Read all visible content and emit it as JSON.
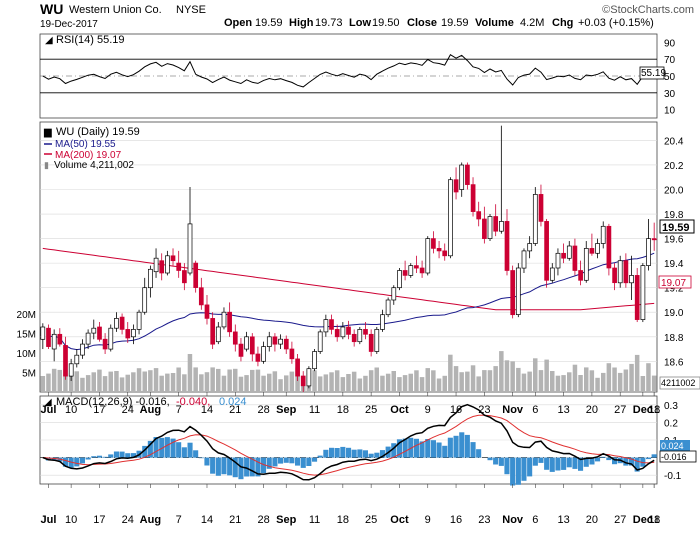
{
  "header": {
    "symbol": "WU",
    "company": "Western Union Co.",
    "exchange": "NYSE",
    "date": "19-Dec-2017",
    "open_label": "Open",
    "open": "19.59",
    "high_label": "High",
    "high": "19.73",
    "low_label": "Low",
    "low": "19.50",
    "close_label": "Close",
    "close": "19.59",
    "volume_label": "Volume",
    "volume": "4.2M",
    "chg_label": "Chg",
    "chg": "+0.03 (+0.15%)",
    "brand": "©StockCharts.com"
  },
  "colors": {
    "up": "#000000",
    "down": "#cc0033",
    "ma50": "#1a1a8c",
    "ma200": "#cc0033",
    "volume": "#b3b3b3",
    "macd_line": "#000000",
    "signal_line": "#e03030",
    "histogram": "#3a8fd0",
    "grid": "#d9d9d9"
  },
  "rsi": {
    "legend": "RSI(14) 55.19",
    "last_label": "55.19"
  },
  "price": {
    "legend_main": "WU (Daily) 19.59",
    "legend_ma50": "MA(50) 19.55",
    "legend_ma200": "MA(200) 19.07",
    "legend_volume": "Volume 4,211,002",
    "last_label": "19.59",
    "ma200_label": "19.07",
    "volume_last_label": "4211002"
  },
  "macd": {
    "legend_main": "MACD(12,26,9) -0.016,",
    "legend_signal": "-0.040,",
    "legend_hist": "0.024",
    "label_hist": "0.024",
    "label_macd": "-0.016"
  },
  "chart_data": {
    "type": "candlestick",
    "title": "WU Western Union Co. NYSE",
    "x_axis_ticks": [
      "Jul",
      "10",
      "17",
      "24",
      "Aug",
      "7",
      "14",
      "21",
      "28",
      "Sep",
      "11",
      "18",
      "25",
      "Oct",
      "9",
      "16",
      "23",
      "Nov",
      "6",
      "13",
      "20",
      "27",
      "Dec",
      "11",
      "18"
    ],
    "price_axis": {
      "ticks": [
        18.6,
        18.8,
        19.0,
        19.2,
        19.4,
        19.6,
        19.8,
        20.0,
        20.2,
        20.4
      ],
      "range": [
        18.35,
        20.55
      ]
    },
    "rsi_axis": {
      "ticks": [
        10,
        30,
        50,
        70,
        90
      ],
      "lines": [
        30,
        70
      ],
      "range": [
        0,
        100
      ]
    },
    "volume_axis": {
      "ticks": [
        "5M",
        "10M",
        "15M",
        "20M"
      ],
      "range_millions": [
        0,
        21
      ]
    },
    "macd_axis": {
      "ticks": [
        -0.1,
        0.0,
        0.1,
        0.2,
        0.3
      ],
      "range": [
        -0.15,
        0.35
      ]
    },
    "series": [
      {
        "name": "WU (Daily)",
        "daily": [
          [
            18.78,
            18.91,
            18.7,
            18.88
          ],
          [
            18.87,
            18.9,
            18.7,
            18.72
          ],
          [
            18.7,
            18.86,
            18.6,
            18.82
          ],
          [
            18.82,
            18.87,
            18.72,
            18.74
          ],
          [
            18.73,
            18.8,
            18.45,
            18.48
          ],
          [
            18.48,
            18.62,
            18.44,
            18.58
          ],
          [
            18.58,
            18.7,
            18.55,
            18.65
          ],
          [
            18.65,
            18.78,
            18.62,
            18.74
          ],
          [
            18.74,
            18.86,
            18.7,
            18.83
          ],
          [
            18.83,
            18.94,
            18.78,
            18.87
          ],
          [
            18.88,
            18.92,
            18.76,
            18.78
          ],
          [
            18.78,
            18.83,
            18.66,
            18.7
          ],
          [
            18.7,
            18.9,
            18.68,
            18.87
          ],
          [
            18.87,
            19.0,
            18.84,
            18.95
          ],
          [
            18.96,
            18.99,
            18.82,
            18.86
          ],
          [
            18.86,
            18.92,
            18.75,
            18.79
          ],
          [
            18.8,
            18.9,
            18.74,
            18.86
          ],
          [
            18.86,
            19.02,
            18.82,
            19.0
          ],
          [
            19.0,
            19.28,
            18.98,
            19.2
          ],
          [
            19.2,
            19.38,
            19.12,
            19.35
          ],
          [
            19.33,
            19.52,
            19.28,
            19.44
          ],
          [
            19.42,
            19.48,
            19.26,
            19.32
          ],
          [
            19.32,
            19.5,
            19.3,
            19.46
          ],
          [
            19.46,
            19.52,
            19.38,
            19.42
          ],
          [
            19.4,
            19.5,
            19.28,
            19.34
          ],
          [
            19.34,
            19.4,
            19.18,
            19.24
          ],
          [
            19.32,
            20.02,
            19.3,
            19.72
          ],
          [
            19.4,
            19.42,
            19.16,
            19.2
          ],
          [
            19.2,
            19.28,
            19.02,
            19.06
          ],
          [
            19.06,
            19.14,
            18.9,
            18.95
          ],
          [
            18.95,
            19.0,
            18.7,
            18.74
          ],
          [
            18.76,
            18.92,
            18.74,
            18.88
          ],
          [
            18.88,
            19.04,
            18.86,
            19.0
          ],
          [
            19.0,
            19.08,
            18.8,
            18.84
          ],
          [
            18.84,
            18.9,
            18.68,
            18.74
          ],
          [
            18.74,
            18.79,
            18.6,
            18.64
          ],
          [
            18.7,
            18.84,
            18.68,
            18.8
          ],
          [
            18.8,
            18.83,
            18.6,
            18.66
          ],
          [
            18.66,
            18.72,
            18.56,
            18.6
          ],
          [
            18.6,
            18.76,
            18.58,
            18.72
          ],
          [
            18.72,
            18.84,
            18.68,
            18.8
          ],
          [
            18.8,
            18.83,
            18.68,
            18.74
          ],
          [
            18.74,
            18.82,
            18.7,
            18.78
          ],
          [
            18.78,
            18.81,
            18.66,
            18.7
          ],
          [
            18.7,
            18.76,
            18.58,
            18.62
          ],
          [
            18.62,
            18.66,
            18.44,
            18.48
          ],
          [
            18.48,
            18.52,
            18.35,
            18.4
          ],
          [
            18.4,
            18.56,
            18.38,
            18.54
          ],
          [
            18.54,
            18.7,
            18.52,
            18.68
          ],
          [
            18.68,
            18.86,
            18.66,
            18.84
          ],
          [
            18.84,
            18.98,
            18.8,
            18.94
          ],
          [
            18.94,
            18.98,
            18.82,
            18.86
          ],
          [
            18.86,
            18.9,
            18.76,
            18.8
          ],
          [
            18.8,
            18.92,
            18.78,
            18.88
          ],
          [
            18.88,
            18.93,
            18.78,
            18.82
          ],
          [
            18.82,
            18.86,
            18.72,
            18.76
          ],
          [
            18.76,
            18.88,
            18.74,
            18.86
          ],
          [
            18.86,
            18.92,
            18.78,
            18.82
          ],
          [
            18.82,
            18.86,
            18.64,
            18.68
          ],
          [
            18.68,
            18.88,
            18.66,
            18.86
          ],
          [
            18.86,
            19.02,
            18.84,
            18.98
          ],
          [
            18.98,
            19.12,
            18.96,
            19.1
          ],
          [
            19.1,
            19.22,
            19.06,
            19.2
          ],
          [
            19.2,
            19.36,
            19.18,
            19.34
          ],
          [
            19.34,
            19.42,
            19.26,
            19.3
          ],
          [
            19.3,
            19.4,
            19.28,
            19.38
          ],
          [
            19.38,
            19.46,
            19.32,
            19.36
          ],
          [
            19.36,
            19.42,
            19.28,
            19.32
          ],
          [
            19.32,
            19.62,
            19.3,
            19.6
          ],
          [
            19.6,
            19.66,
            19.48,
            19.52
          ],
          [
            19.52,
            19.58,
            19.44,
            19.5
          ],
          [
            19.5,
            19.56,
            19.42,
            19.46
          ],
          [
            19.46,
            20.1,
            19.44,
            20.08
          ],
          [
            20.08,
            20.18,
            19.92,
            19.98
          ],
          [
            20.0,
            20.22,
            19.94,
            20.2
          ],
          [
            20.2,
            20.22,
            20.0,
            20.04
          ],
          [
            20.04,
            20.1,
            19.78,
            19.82
          ],
          [
            19.82,
            19.9,
            19.7,
            19.76
          ],
          [
            19.76,
            19.86,
            19.56,
            19.6
          ],
          [
            19.6,
            19.8,
            19.58,
            19.78
          ],
          [
            19.78,
            19.88,
            19.62,
            19.66
          ],
          [
            19.66,
            20.52,
            19.64,
            19.74
          ],
          [
            19.74,
            19.84,
            19.3,
            19.34
          ],
          [
            19.34,
            19.38,
            18.95,
            18.98
          ],
          [
            18.98,
            19.4,
            18.96,
            19.36
          ],
          [
            19.36,
            19.52,
            19.32,
            19.5
          ],
          [
            19.5,
            19.62,
            19.44,
            19.56
          ],
          [
            19.56,
            20.02,
            19.54,
            19.96
          ],
          [
            19.96,
            20.04,
            19.7,
            19.74
          ],
          [
            19.74,
            19.76,
            19.2,
            19.26
          ],
          [
            19.26,
            19.4,
            19.24,
            19.36
          ],
          [
            19.36,
            19.52,
            19.3,
            19.48
          ],
          [
            19.48,
            19.56,
            19.4,
            19.44
          ],
          [
            19.44,
            19.58,
            19.42,
            19.54
          ],
          [
            19.54,
            19.6,
            19.3,
            19.34
          ],
          [
            19.34,
            19.42,
            19.22,
            19.26
          ],
          [
            19.26,
            19.58,
            19.24,
            19.52
          ],
          [
            19.52,
            19.64,
            19.46,
            19.48
          ],
          [
            19.48,
            19.6,
            19.44,
            19.56
          ],
          [
            19.56,
            19.74,
            19.52,
            19.7
          ],
          [
            19.7,
            19.72,
            19.3,
            19.36
          ],
          [
            19.36,
            19.4,
            19.18,
            19.24
          ],
          [
            19.24,
            19.46,
            19.2,
            19.42
          ],
          [
            19.42,
            19.48,
            19.2,
            19.24
          ],
          [
            19.24,
            19.46,
            19.1,
            19.3
          ],
          [
            19.3,
            19.36,
            18.92,
            18.94
          ],
          [
            18.94,
            19.4,
            18.92,
            19.38
          ],
          [
            19.38,
            19.76,
            19.34,
            19.6
          ],
          [
            19.6,
            19.73,
            19.5,
            19.59
          ]
        ]
      },
      {
        "name": "MA(50)",
        "last": 19.55
      },
      {
        "name": "MA(200)",
        "last": 19.07
      },
      {
        "name": "Volume",
        "last": 4211002
      },
      {
        "name": "RSI(14)",
        "last": 55.19
      },
      {
        "name": "MACD(12,26,9)",
        "macd_last": -0.016,
        "signal_last": -0.04,
        "histogram_last": 0.024
      }
    ]
  }
}
